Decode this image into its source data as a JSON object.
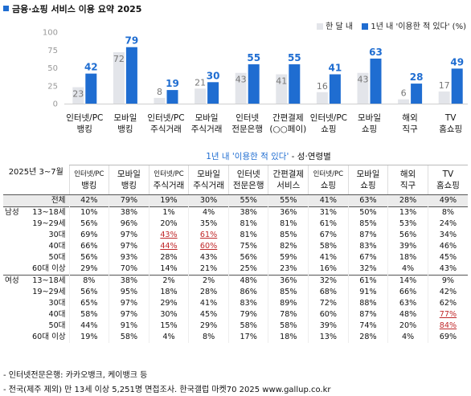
{
  "title": "금융·쇼핑 서비스 이용 요약 2025",
  "chart_data": {
    "type": "bar",
    "categories": [
      [
        "인터넷/PC",
        "뱅킹"
      ],
      [
        "모바일",
        "뱅킹"
      ],
      [
        "인터넷/PC",
        "주식거래"
      ],
      [
        "모바일",
        "주식거래"
      ],
      [
        "인터넷",
        "전문은행"
      ],
      [
        "간편결제",
        "(○○페이)"
      ],
      [
        "인터넷/PC",
        "쇼핑"
      ],
      [
        "모바일",
        "쇼핑"
      ],
      [
        "해외",
        "직구"
      ],
      [
        "TV",
        "홈쇼핑"
      ]
    ],
    "series": [
      {
        "name": "한 달 내",
        "color": "#e3e5ea",
        "label_color": "#777777",
        "values": [
          23,
          72,
          8,
          21,
          43,
          41,
          16,
          43,
          6,
          17
        ]
      },
      {
        "name": "1년 내 '이용한 적 있다' (%)",
        "color": "#1f6dd1",
        "label_color": "#1f6dd1",
        "values": [
          42,
          79,
          19,
          30,
          55,
          55,
          41,
          63,
          28,
          49
        ]
      }
    ],
    "ylim": [
      0,
      100
    ],
    "yticks": [
      "0",
      "25",
      "50",
      "75",
      "100"
    ],
    "grid": false,
    "legend": "top-right"
  },
  "table": {
    "corner_label": "2025년 3~7월",
    "header_title": "1년 내 '이용한 적 있다'",
    "header_sub": " - 성·연령별",
    "columns": [
      [
        "인터넷/PC",
        "뱅킹"
      ],
      [
        "모바일",
        "뱅킹"
      ],
      [
        "인터넷/PC",
        "주식거래"
      ],
      [
        "모바일",
        "주식거래"
      ],
      [
        "인터넷",
        "전문은행"
      ],
      [
        "간편결제",
        "서비스"
      ],
      [
        "인터넷/PC",
        "쇼핑"
      ],
      [
        "모바일",
        "쇼핑"
      ],
      [
        "해외",
        "직구"
      ],
      [
        "TV",
        "홈쇼핑"
      ]
    ],
    "rows": [
      {
        "group": "",
        "label": "전체",
        "values": [
          "42%",
          "79%",
          "19%",
          "30%",
          "55%",
          "55%",
          "41%",
          "63%",
          "28%",
          "49%"
        ],
        "highlight": []
      },
      {
        "group": "남성",
        "label": "13~18세",
        "values": [
          "10%",
          "38%",
          "1%",
          "4%",
          "38%",
          "36%",
          "31%",
          "50%",
          "13%",
          "8%"
        ],
        "highlight": []
      },
      {
        "group": "",
        "label": "19~29세",
        "values": [
          "56%",
          "96%",
          "20%",
          "35%",
          "81%",
          "81%",
          "61%",
          "85%",
          "53%",
          "24%"
        ],
        "highlight": []
      },
      {
        "group": "",
        "label": "30대",
        "values": [
          "69%",
          "97%",
          "43%",
          "61%",
          "81%",
          "85%",
          "67%",
          "87%",
          "56%",
          "34%"
        ],
        "highlight": [
          2,
          3
        ]
      },
      {
        "group": "",
        "label": "40대",
        "values": [
          "66%",
          "97%",
          "44%",
          "60%",
          "75%",
          "82%",
          "58%",
          "83%",
          "39%",
          "46%"
        ],
        "highlight": [
          2,
          3
        ]
      },
      {
        "group": "",
        "label": "50대",
        "values": [
          "56%",
          "93%",
          "28%",
          "43%",
          "56%",
          "59%",
          "41%",
          "67%",
          "18%",
          "45%"
        ],
        "highlight": []
      },
      {
        "group": "",
        "label": "60대 이상",
        "values": [
          "29%",
          "70%",
          "14%",
          "21%",
          "25%",
          "23%",
          "16%",
          "32%",
          "4%",
          "43%"
        ],
        "highlight": []
      },
      {
        "group": "여성",
        "label": "13~18세",
        "values": [
          "8%",
          "38%",
          "2%",
          "2%",
          "48%",
          "36%",
          "32%",
          "61%",
          "14%",
          "9%"
        ],
        "highlight": []
      },
      {
        "group": "",
        "label": "19~29세",
        "values": [
          "56%",
          "95%",
          "18%",
          "28%",
          "86%",
          "85%",
          "68%",
          "91%",
          "66%",
          "42%"
        ],
        "highlight": []
      },
      {
        "group": "",
        "label": "30대",
        "values": [
          "65%",
          "97%",
          "29%",
          "41%",
          "83%",
          "89%",
          "72%",
          "88%",
          "63%",
          "62%"
        ],
        "highlight": []
      },
      {
        "group": "",
        "label": "40대",
        "values": [
          "58%",
          "97%",
          "30%",
          "45%",
          "79%",
          "78%",
          "60%",
          "87%",
          "48%",
          "77%"
        ],
        "highlight": [
          9
        ]
      },
      {
        "group": "",
        "label": "50대",
        "values": [
          "44%",
          "91%",
          "15%",
          "29%",
          "58%",
          "58%",
          "39%",
          "74%",
          "20%",
          "84%"
        ],
        "highlight": [
          9
        ]
      },
      {
        "group": "",
        "label": "60대 이상",
        "values": [
          "19%",
          "58%",
          "4%",
          "8%",
          "17%",
          "18%",
          "13%",
          "28%",
          "4%",
          "69%"
        ],
        "highlight": []
      }
    ]
  },
  "footnotes": [
    "- 인터넷전문은행: 카카오뱅크, 케이뱅크 등",
    "- 전국(제주 제외) 만 13세 이상 5,251명 면접조사. 한국갤럽 마켓70 2025 www.gallup.co.kr"
  ]
}
